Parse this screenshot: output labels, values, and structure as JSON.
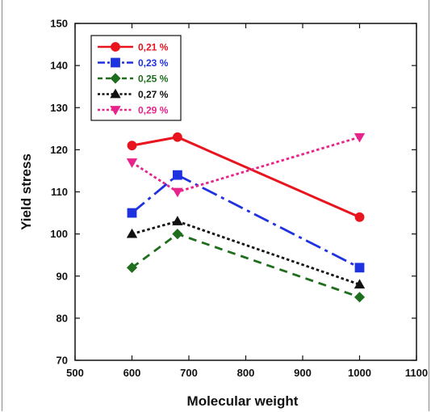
{
  "chart_data": {
    "type": "line",
    "title": "",
    "xlabel": "Molecular weight",
    "ylabel": "Yield stress",
    "xlim": [
      500,
      1100
    ],
    "ylim": [
      70,
      150
    ],
    "xticks": [
      "500",
      "600",
      "700",
      "800",
      "900",
      "1000",
      "1100"
    ],
    "yticks": [
      "70",
      "80",
      "90",
      "100",
      "110",
      "120",
      "130",
      "140",
      "150"
    ],
    "grid": false,
    "legend_position": "top-left",
    "series": [
      {
        "name": "0,21 %",
        "color": "#e8141e",
        "line_style": "solid",
        "marker": "circle",
        "points": [
          {
            "x": 600,
            "y": 121
          },
          {
            "x": 680,
            "y": 123
          },
          {
            "x": 1000,
            "y": 104
          }
        ]
      },
      {
        "name": "0,23 %",
        "color": "#1f32e0",
        "line_style": "dash-dot",
        "marker": "square",
        "points": [
          {
            "x": 600,
            "y": 105
          },
          {
            "x": 680,
            "y": 114
          },
          {
            "x": 1000,
            "y": 92
          }
        ]
      },
      {
        "name": "0,25 %",
        "color": "#1e6e1e",
        "line_style": "dashed",
        "marker": "diamond",
        "points": [
          {
            "x": 600,
            "y": 92
          },
          {
            "x": 680,
            "y": 100
          },
          {
            "x": 1000,
            "y": 85
          }
        ]
      },
      {
        "name": "0,27 %",
        "color": "#111111",
        "line_style": "dotted",
        "marker": "triangle-up",
        "points": [
          {
            "x": 600,
            "y": 100
          },
          {
            "x": 680,
            "y": 103
          },
          {
            "x": 1000,
            "y": 88
          }
        ]
      },
      {
        "name": "0,29 %",
        "color": "#e8238c",
        "line_style": "dotted",
        "marker": "triangle-down",
        "points": [
          {
            "x": 600,
            "y": 117
          },
          {
            "x": 680,
            "y": 110
          },
          {
            "x": 1000,
            "y": 123
          }
        ]
      }
    ]
  }
}
